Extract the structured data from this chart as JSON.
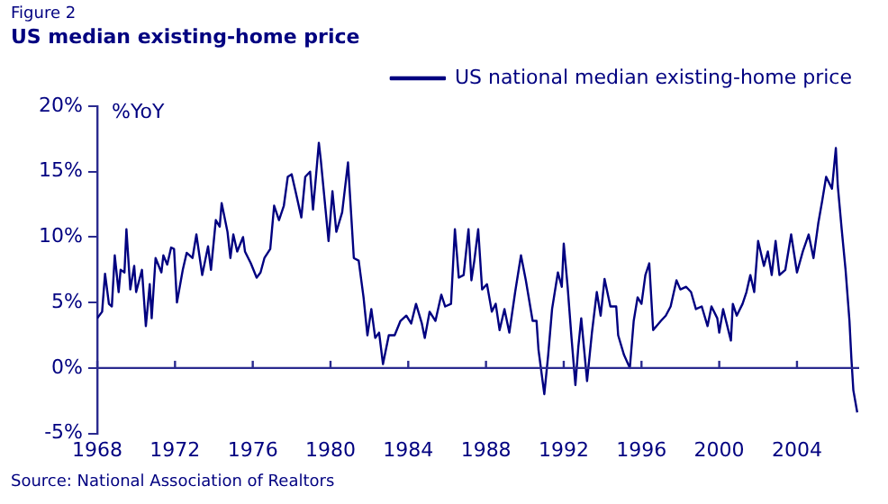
{
  "chart_data": {
    "type": "line",
    "subtitle": "Figure 2",
    "title": "US median existing-home price",
    "ylabel": "%YoY",
    "annotations": [
      "Source: National Association of Realtors"
    ],
    "xlim": [
      1968,
      2007.2
    ],
    "xticks": [
      1968,
      1972,
      1976,
      1980,
      1984,
      1988,
      1992,
      1996,
      2000,
      2004
    ],
    "ylim": [
      -5,
      20
    ],
    "yticks": [
      {
        "value": -5,
        "label": "-5%"
      },
      {
        "value": 0,
        "label": "0%"
      },
      {
        "value": 5,
        "label": "5%"
      },
      {
        "value": 10,
        "label": "10%"
      },
      {
        "value": 15,
        "label": "15%"
      },
      {
        "value": 20,
        "label": "20%"
      }
    ],
    "ref_lines": [
      {
        "axis": "y",
        "value": 0,
        "color": "#2a2a8f"
      }
    ],
    "grid": false,
    "legend": "top right",
    "marker": "none",
    "line_style": "solid",
    "series": [
      {
        "name": "US national median existing-home price",
        "color": "#000080",
        "x": [
          1968.0,
          1968.25,
          1968.4,
          1968.6,
          1968.75,
          1968.9,
          1969.1,
          1969.2,
          1969.4,
          1969.5,
          1969.7,
          1969.9,
          1970.0,
          1970.3,
          1970.5,
          1970.7,
          1970.8,
          1971.0,
          1971.3,
          1971.4,
          1971.6,
          1971.8,
          1971.95,
          1972.1,
          1972.4,
          1972.6,
          1972.9,
          1973.1,
          1973.4,
          1973.7,
          1973.85,
          1974.1,
          1974.3,
          1974.4,
          1974.7,
          1974.85,
          1975.0,
          1975.2,
          1975.5,
          1975.6,
          1975.9,
          1976.2,
          1976.4,
          1976.6,
          1976.9,
          1977.1,
          1977.35,
          1977.6,
          1977.8,
          1978.0,
          1978.2,
          1978.5,
          1978.7,
          1978.95,
          1979.1,
          1979.25,
          1979.4,
          1979.5,
          1979.9,
          1980.1,
          1980.3,
          1980.6,
          1980.9,
          1981.2,
          1981.45,
          1981.7,
          1981.9,
          1982.1,
          1982.3,
          1982.5,
          1982.7,
          1983.0,
          1983.3,
          1983.6,
          1983.9,
          1984.15,
          1984.4,
          1984.7,
          1984.85,
          1985.1,
          1985.4,
          1985.7,
          1985.9,
          1986.2,
          1986.4,
          1986.6,
          1986.85,
          1987.1,
          1987.25,
          1987.4,
          1987.6,
          1987.8,
          1988.05,
          1988.3,
          1988.5,
          1988.7,
          1988.95,
          1989.2,
          1989.5,
          1989.8,
          1990.05,
          1990.4,
          1990.6,
          1990.7,
          1991.0,
          1991.2,
          1991.4,
          1991.7,
          1991.9,
          1992.0,
          1992.2,
          1992.4,
          1992.6,
          1992.75,
          1992.9,
          1993.2,
          1993.45,
          1993.7,
          1993.9,
          1994.1,
          1994.4,
          1994.7,
          1994.8,
          1995.1,
          1995.4,
          1995.6,
          1995.8,
          1996.0,
          1996.2,
          1996.4,
          1996.6,
          1997.0,
          1997.25,
          1997.5,
          1997.8,
          1998.0,
          1998.3,
          1998.55,
          1998.8,
          1999.1,
          1999.4,
          1999.6,
          1999.9,
          2000.0,
          2000.2,
          2000.6,
          2000.7,
          2000.9,
          2001.2,
          2001.4,
          2001.6,
          2001.8,
          2002.0,
          2002.3,
          2002.5,
          2002.7,
          2002.9,
          2003.1,
          2003.4,
          2003.7,
          2004.0,
          2004.3,
          2004.6,
          2004.85,
          2005.1,
          2005.3,
          2005.5,
          2005.8,
          2006.0,
          2006.1,
          2006.3,
          2006.5,
          2006.7,
          2006.8,
          2006.9,
          2007.1
        ],
        "values": [
          3.8,
          4.3,
          7.2,
          4.9,
          4.7,
          8.6,
          5.8,
          7.5,
          7.3,
          10.6,
          6.0,
          7.8,
          5.8,
          7.5,
          3.2,
          6.4,
          3.8,
          8.4,
          7.3,
          8.6,
          7.9,
          9.2,
          9.1,
          5.0,
          7.5,
          8.8,
          8.4,
          10.2,
          7.1,
          9.3,
          7.5,
          11.3,
          10.8,
          12.6,
          10.4,
          8.4,
          10.2,
          8.9,
          10.0,
          8.9,
          8.0,
          6.9,
          7.3,
          8.4,
          9.1,
          12.4,
          11.3,
          12.4,
          14.6,
          14.8,
          13.5,
          11.5,
          14.6,
          15.0,
          12.1,
          14.6,
          17.2,
          15.9,
          9.7,
          13.5,
          10.4,
          11.9,
          15.7,
          8.4,
          8.2,
          5.4,
          2.5,
          4.5,
          2.3,
          2.7,
          0.3,
          2.5,
          2.5,
          3.6,
          4.0,
          3.4,
          4.9,
          3.4,
          2.3,
          4.3,
          3.6,
          5.6,
          4.7,
          4.9,
          10.6,
          6.9,
          7.1,
          10.6,
          6.7,
          8.2,
          10.6,
          6.0,
          6.4,
          4.3,
          4.9,
          2.9,
          4.5,
          2.7,
          5.8,
          8.6,
          6.7,
          3.6,
          3.6,
          1.4,
          -2.0,
          1.0,
          4.5,
          7.3,
          6.2,
          9.5,
          6.2,
          2.3,
          -1.3,
          1.6,
          3.8,
          -1.0,
          2.7,
          5.8,
          4.0,
          6.8,
          4.7,
          4.7,
          2.5,
          1.0,
          0.0,
          3.6,
          5.4,
          4.9,
          7.1,
          8.0,
          2.9,
          3.6,
          4.0,
          4.7,
          6.7,
          6.0,
          6.2,
          5.8,
          4.5,
          4.7,
          3.2,
          4.7,
          3.8,
          2.7,
          4.5,
          2.1,
          4.9,
          4.0,
          4.9,
          5.8,
          7.1,
          5.8,
          9.7,
          7.8,
          8.9,
          7.1,
          9.7,
          7.1,
          7.5,
          10.2,
          7.3,
          8.9,
          10.2,
          8.4,
          11.1,
          12.8,
          14.6,
          13.7,
          16.8,
          13.9,
          10.6,
          7.5,
          3.6,
          0.7,
          -1.7,
          -3.4
        ]
      }
    ]
  }
}
